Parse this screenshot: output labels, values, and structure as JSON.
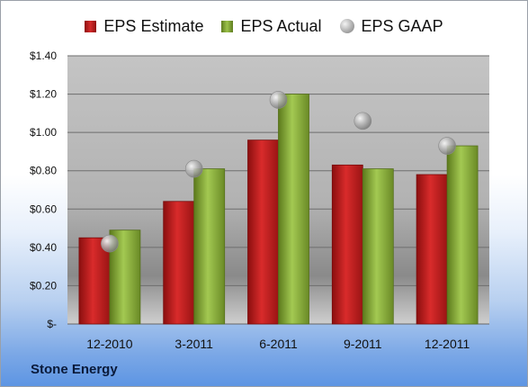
{
  "chart_data": {
    "type": "bar",
    "categories": [
      "12-2010",
      "3-2011",
      "6-2011",
      "9-2011",
      "12-2011"
    ],
    "series": [
      {
        "name": "EPS Estimate",
        "type": "bar",
        "values": [
          0.45,
          0.64,
          0.96,
          0.83,
          0.78
        ],
        "color": "#c82020"
      },
      {
        "name": "EPS Actual",
        "type": "bar",
        "values": [
          0.49,
          0.81,
          1.2,
          0.81,
          0.93
        ],
        "color": "#8fb33a"
      },
      {
        "name": "EPS GAAP",
        "type": "scatter",
        "values": [
          0.42,
          0.81,
          1.17,
          1.06,
          0.93
        ],
        "color": "#b0b0b0"
      }
    ],
    "ylim": [
      0,
      1.4
    ],
    "yticks": [
      0,
      0.2,
      0.4,
      0.6,
      0.8,
      1.0,
      1.2,
      1.4
    ],
    "ytick_labels": [
      "$-",
      "$0.20",
      "$0.40",
      "$0.60",
      "$0.80",
      "$1.00",
      "$1.20",
      "$1.40"
    ],
    "grid": true,
    "legend_position": "top"
  },
  "legend": {
    "estimate": "EPS Estimate",
    "actual": "EPS Actual",
    "gaap": "EPS GAAP"
  },
  "company": "Stone Energy"
}
